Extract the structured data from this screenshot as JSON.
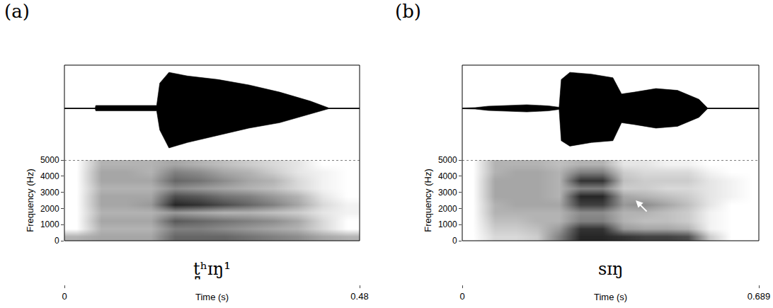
{
  "chart_data": [
    {
      "type": "spectrogram",
      "panel": "(a)",
      "annotation": "t̪ʰɪŋ¹",
      "xlabel": "Time (s)",
      "ylabel": "Frequency (Hz)",
      "xlim": [
        0,
        0.48
      ],
      "xticks": [
        0,
        0.48
      ],
      "ylim": [
        0,
        5000
      ],
      "yticks": [
        0,
        1000,
        2000,
        3000,
        4000,
        5000
      ],
      "waveform": {
        "color": "#000000",
        "ylim": [
          -1.2,
          1.2
        ],
        "x": [
          0,
          0.05,
          0.051,
          0.15,
          0.155,
          0.17,
          0.2,
          0.25,
          0.3,
          0.35,
          0.4,
          0.43,
          0.48
        ],
        "upper": [
          0.01,
          0.01,
          0.08,
          0.08,
          0.7,
          1.0,
          0.9,
          0.8,
          0.65,
          0.45,
          0.2,
          0.01,
          0.01
        ],
        "lower": [
          -0.01,
          -0.01,
          -0.07,
          -0.07,
          -0.6,
          -1.1,
          -0.95,
          -0.75,
          -0.55,
          -0.4,
          -0.15,
          -0.01,
          -0.01
        ]
      },
      "spectrogram": {
        "zlim": [
          0,
          1
        ],
        "x": [
          0.02,
          0.06,
          0.1,
          0.14,
          0.18,
          0.22,
          0.26,
          0.3,
          0.34,
          0.38,
          0.42,
          0.46
        ],
        "y": [
          250,
          750,
          1250,
          1750,
          2250,
          2750,
          3250,
          3750,
          4250,
          4750
        ],
        "cells": [
          [
            0.3,
            0.35,
            0.35,
            0.35,
            0.6,
            0.6,
            0.6,
            0.55,
            0.5,
            0.45,
            0.35,
            0.3
          ],
          [
            0,
            0.3,
            0.3,
            0.3,
            0.5,
            0.5,
            0.45,
            0.4,
            0.35,
            0.3,
            0.15,
            0
          ],
          [
            0,
            0.35,
            0.35,
            0.35,
            0.65,
            0.6,
            0.55,
            0.5,
            0.45,
            0.35,
            0.15,
            0
          ],
          [
            0,
            0.3,
            0.3,
            0.3,
            0.4,
            0.35,
            0.3,
            0.3,
            0.25,
            0.2,
            0.1,
            0.05
          ],
          [
            0,
            0.35,
            0.35,
            0.4,
            0.85,
            0.8,
            0.7,
            0.6,
            0.5,
            0.35,
            0.15,
            0.05
          ],
          [
            0,
            0.35,
            0.35,
            0.35,
            0.7,
            0.65,
            0.55,
            0.5,
            0.4,
            0.3,
            0.1,
            0
          ],
          [
            0,
            0.3,
            0.3,
            0.3,
            0.45,
            0.4,
            0.35,
            0.3,
            0.25,
            0.15,
            0.05,
            0
          ],
          [
            0,
            0.35,
            0.35,
            0.35,
            0.6,
            0.55,
            0.45,
            0.35,
            0.3,
            0.15,
            0.05,
            0
          ],
          [
            0,
            0.35,
            0.35,
            0.3,
            0.5,
            0.45,
            0.35,
            0.3,
            0.2,
            0.1,
            0.05,
            0
          ],
          [
            0,
            0.3,
            0.3,
            0.3,
            0.35,
            0.3,
            0.25,
            0.2,
            0.15,
            0.1,
            0,
            0
          ]
        ]
      }
    },
    {
      "type": "spectrogram",
      "panel": "(b)",
      "annotation": "sɪŋ",
      "xlabel": "Time (s)",
      "ylabel": "Frequency (Hz)",
      "xlim": [
        0,
        0.689
      ],
      "xticks": [
        0,
        0.689
      ],
      "ylim": [
        0,
        5000
      ],
      "yticks": [
        0,
        1000,
        2000,
        3000,
        4000,
        5000
      ],
      "waveform": {
        "color": "#000000",
        "ylim": [
          -1.2,
          1.2
        ],
        "x": [
          0,
          0.03,
          0.06,
          0.1,
          0.15,
          0.2,
          0.225,
          0.23,
          0.25,
          0.3,
          0.35,
          0.37,
          0.4,
          0.45,
          0.5,
          0.55,
          0.57,
          0.689
        ],
        "upper": [
          0.01,
          0.02,
          0.06,
          0.08,
          0.1,
          0.07,
          0.03,
          0.8,
          1.0,
          0.95,
          0.85,
          0.4,
          0.45,
          0.55,
          0.5,
          0.25,
          0.01,
          0.01
        ],
        "lower": [
          -0.01,
          -0.02,
          -0.06,
          -0.08,
          -0.1,
          -0.07,
          -0.03,
          -0.9,
          -1.05,
          -0.95,
          -0.9,
          -0.4,
          -0.45,
          -0.55,
          -0.5,
          -0.25,
          -0.01,
          -0.01
        ]
      },
      "spectrogram": {
        "zlim": [
          0,
          1
        ],
        "x": [
          0.025,
          0.075,
          0.125,
          0.175,
          0.225,
          0.275,
          0.325,
          0.375,
          0.425,
          0.475,
          0.525,
          0.575,
          0.625,
          0.675
        ],
        "y": [
          250,
          750,
          1250,
          1750,
          2250,
          2750,
          3250,
          3750,
          4250,
          4750
        ],
        "cells": [
          [
            0,
            0.15,
            0.15,
            0.2,
            0.5,
            0.85,
            0.85,
            0.8,
            0.75,
            0.75,
            0.7,
            0.2,
            0,
            0
          ],
          [
            0,
            0.2,
            0.2,
            0.25,
            0.4,
            0.8,
            0.8,
            0.4,
            0.35,
            0.35,
            0.3,
            0.05,
            0,
            0
          ],
          [
            0,
            0.25,
            0.25,
            0.3,
            0.3,
            0.5,
            0.5,
            0.3,
            0.25,
            0.25,
            0.2,
            0.05,
            0,
            0
          ],
          [
            0,
            0.3,
            0.3,
            0.3,
            0.3,
            0.45,
            0.45,
            0.3,
            0.3,
            0.25,
            0.2,
            0.05,
            0,
            0
          ],
          [
            0,
            0.3,
            0.35,
            0.35,
            0.35,
            0.75,
            0.75,
            0.4,
            0.45,
            0.35,
            0.25,
            0.1,
            0,
            0
          ],
          [
            0,
            0.35,
            0.35,
            0.35,
            0.3,
            0.85,
            0.85,
            0.35,
            0.3,
            0.25,
            0.2,
            0.1,
            0.05,
            0
          ],
          [
            0,
            0.35,
            0.35,
            0.35,
            0.3,
            0.5,
            0.5,
            0.2,
            0.2,
            0.15,
            0.15,
            0.1,
            0.05,
            0
          ],
          [
            0,
            0.35,
            0.35,
            0.35,
            0.3,
            0.8,
            0.8,
            0.25,
            0.2,
            0.2,
            0.2,
            0.1,
            0.05,
            0
          ],
          [
            0,
            0.3,
            0.35,
            0.35,
            0.3,
            0.5,
            0.5,
            0.2,
            0.15,
            0.15,
            0.15,
            0.05,
            0,
            0
          ],
          [
            0,
            0.3,
            0.3,
            0.3,
            0.25,
            0.3,
            0.3,
            0.1,
            0.1,
            0.05,
            0.05,
            0,
            0,
            0
          ]
        ]
      },
      "arrow": {
        "x": [
          0.431,
          0.403
        ],
        "y": [
          1750,
          2500
        ]
      }
    }
  ]
}
